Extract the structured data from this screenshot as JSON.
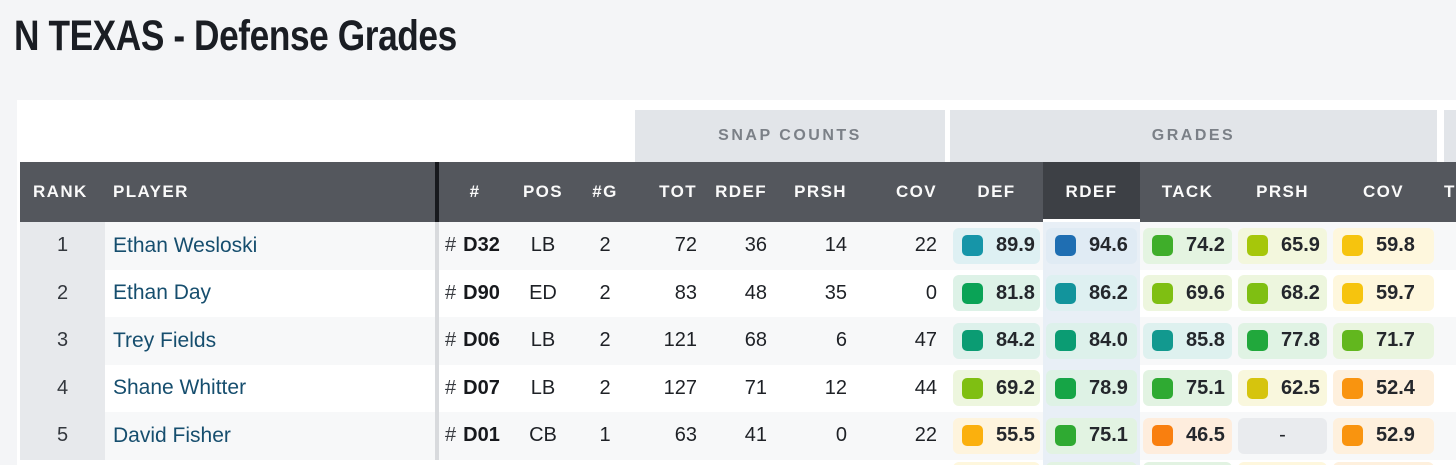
{
  "page": {
    "title": "N TEXAS - Defense Grades"
  },
  "groups": {
    "snap_counts": "SNAP COUNTS",
    "grades": "GRADES",
    "next_partial": ""
  },
  "columns": {
    "rank": "RANK",
    "player": "PLAYER",
    "num": "#",
    "pos": "POS",
    "games": "#G",
    "tot": "TOT",
    "rdef_snaps": "RDEF",
    "prsh_snaps": "PRSH",
    "cov_snaps": "COV",
    "def": "DEF",
    "rdef": "RDEF",
    "tack": "TACK",
    "prsh": "PRSH",
    "cov": "COV",
    "next_partial": "T"
  },
  "selected_column": "RDEF",
  "colors": {
    "header_bg": "#54575d",
    "header_selected_bg": "#3d4045",
    "selected_col_bg": "#e8eff6",
    "rank_col_bg": "#e7e9ec",
    "group_bg": "#e2e5e9",
    "link": "#164e6e"
  },
  "rows": [
    {
      "rank": "1",
      "player": "Ethan Wesloski",
      "num_prefix": "#",
      "num": "D32",
      "pos": "LB",
      "g": "2",
      "tot": "72",
      "rdef": "36",
      "prsh": "14",
      "cov": "22",
      "grades": {
        "def": {
          "v": "89.9",
          "c": "#1695a8"
        },
        "rdef": {
          "v": "94.6",
          "c": "#1f6eb2"
        },
        "tack": {
          "v": "74.2",
          "c": "#3fae2a"
        },
        "prsh": {
          "v": "65.9",
          "c": "#a6c70a"
        },
        "cov": {
          "v": "59.8",
          "c": "#f6c40e"
        }
      }
    },
    {
      "rank": "2",
      "player": "Ethan Day",
      "num_prefix": "#",
      "num": "D90",
      "pos": "ED",
      "g": "2",
      "tot": "83",
      "rdef": "48",
      "prsh": "35",
      "cov": "0",
      "grades": {
        "def": {
          "v": "81.8",
          "c": "#0aa356"
        },
        "rdef": {
          "v": "86.2",
          "c": "#12949c"
        },
        "tack": {
          "v": "69.6",
          "c": "#7fbf12"
        },
        "prsh": {
          "v": "68.2",
          "c": "#7fbf12"
        },
        "cov": {
          "v": "59.7",
          "c": "#f6c40e"
        }
      }
    },
    {
      "rank": "3",
      "player": "Trey Fields",
      "num_prefix": "#",
      "num": "D06",
      "pos": "LB",
      "g": "2",
      "tot": "121",
      "rdef": "68",
      "prsh": "6",
      "cov": "47",
      "grades": {
        "def": {
          "v": "84.2",
          "c": "#0b9c73"
        },
        "rdef": {
          "v": "84.0",
          "c": "#0b9c73"
        },
        "tack": {
          "v": "85.8",
          "c": "#12998f"
        },
        "prsh": {
          "v": "77.8",
          "c": "#21a83c"
        },
        "cov": {
          "v": "71.7",
          "c": "#62b71e"
        }
      }
    },
    {
      "rank": "4",
      "player": "Shane Whitter",
      "num_prefix": "#",
      "num": "D07",
      "pos": "LB",
      "g": "2",
      "tot": "127",
      "rdef": "71",
      "prsh": "12",
      "cov": "44",
      "grades": {
        "def": {
          "v": "69.2",
          "c": "#7fbf12"
        },
        "rdef": {
          "v": "78.9",
          "c": "#16a546"
        },
        "tack": {
          "v": "75.1",
          "c": "#2faa32"
        },
        "prsh": {
          "v": "62.5",
          "c": "#d6c40d"
        },
        "cov": {
          "v": "52.4",
          "c": "#f9940f"
        }
      }
    },
    {
      "rank": "5",
      "player": "David Fisher",
      "num_prefix": "#",
      "num": "D01",
      "pos": "CB",
      "g": "1",
      "tot": "63",
      "rdef": "41",
      "prsh": "0",
      "cov": "22",
      "grades": {
        "def": {
          "v": "55.5",
          "c": "#fbb00d"
        },
        "rdef": {
          "v": "75.1",
          "c": "#2faa32"
        },
        "tack": {
          "v": "46.5",
          "c": "#f97f0f"
        },
        "prsh": {
          "v": "-",
          "c": null
        },
        "cov": {
          "v": "52.9",
          "c": "#f9940f"
        }
      }
    }
  ],
  "partial_row_tints": {
    "def": "#f6c40e",
    "rdef": "#2faa32",
    "tack": "#2faa32",
    "prsh": "#f6c40e",
    "cov": "#f9940f"
  }
}
